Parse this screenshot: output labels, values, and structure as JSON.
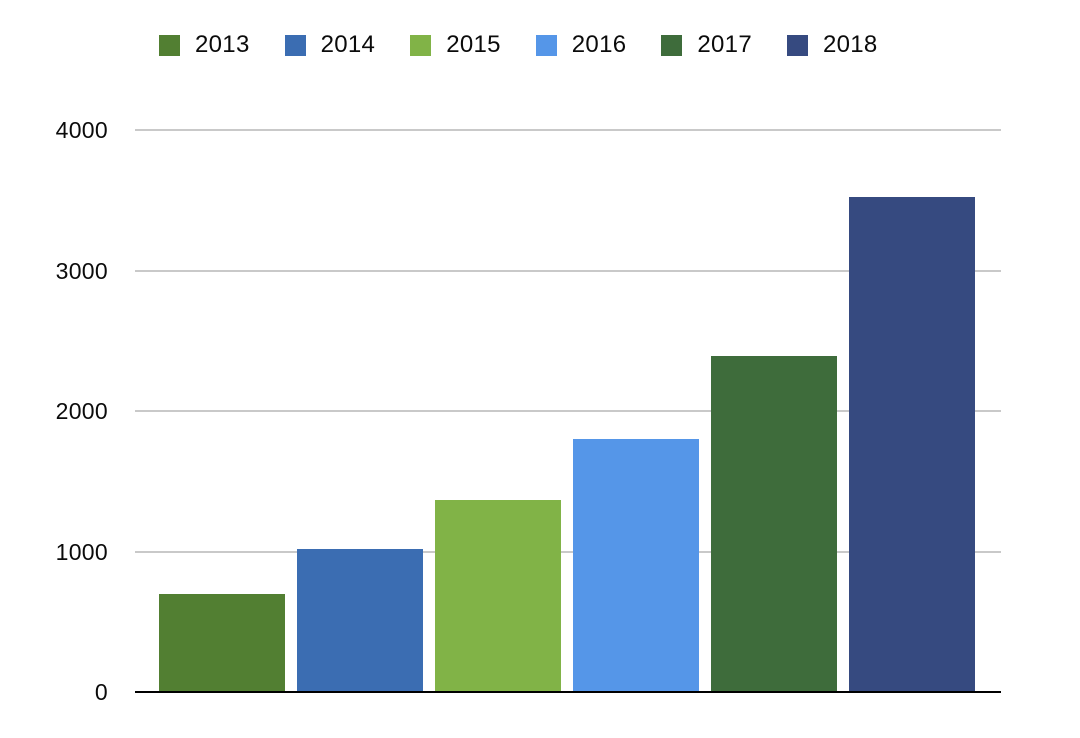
{
  "chart_data": {
    "type": "bar",
    "title": "",
    "xlabel": "",
    "ylabel": "",
    "categories": [
      "2013",
      "2014",
      "2015",
      "2016",
      "2017",
      "2018"
    ],
    "values": [
      700,
      1020,
      1370,
      1800,
      2390,
      3520
    ],
    "series_colors": [
      "#527f32",
      "#3b6db2",
      "#81b347",
      "#5596e8",
      "#3e6c3b",
      "#364a80"
    ],
    "ylim": [
      0,
      4000
    ],
    "yticks": [
      0,
      1000,
      2000,
      3000,
      4000
    ],
    "ytick_labels": [
      "0",
      "1000",
      "2000",
      "3000",
      "4000"
    ],
    "grid": "horizontal",
    "legend_position": "top",
    "colors": {
      "gridline": "#c9c9c9",
      "axis_line": "#000000",
      "text": "#0b0b0b",
      "background": "#ffffff"
    }
  }
}
